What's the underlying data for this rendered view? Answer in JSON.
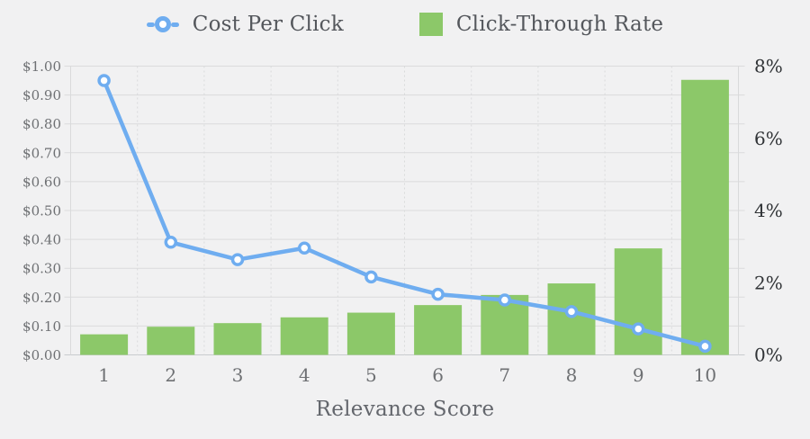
{
  "background_color": "#f1f1f2",
  "legend": {
    "items": [
      {
        "label": "Cost Per Click",
        "marker": "line-circle-marker",
        "color": "#6fadf0"
      },
      {
        "label": "Click-Through Rate",
        "marker": "square-swatch",
        "color": "#8cc869"
      }
    ]
  },
  "chart_data": {
    "type": "combo",
    "categories": [
      "1",
      "2",
      "3",
      "4",
      "5",
      "6",
      "7",
      "8",
      "9",
      "10"
    ],
    "xlabel": "Relevance Score",
    "series": [
      {
        "name": "Cost Per Click",
        "type": "line",
        "axis": "left",
        "color": "#6fadf0",
        "marker": "open-circle",
        "unit": "$",
        "values": [
          0.95,
          0.39,
          0.33,
          0.37,
          0.27,
          0.21,
          0.19,
          0.15,
          0.09,
          0.03
        ]
      },
      {
        "name": "Click-Through Rate",
        "type": "bar",
        "axis": "right",
        "color": "#8cc869",
        "unit": "%",
        "values": [
          0.57,
          0.78,
          0.88,
          1.04,
          1.17,
          1.38,
          1.66,
          1.98,
          2.95,
          7.62
        ]
      }
    ],
    "left_axis": {
      "min": 0,
      "max": 1,
      "ticks": [
        "$1.00",
        "$0.90",
        "$0.80",
        "$0.70",
        "$0.60",
        "$0.50",
        "$0.40",
        "$0.30",
        "$0.20",
        "$0.10",
        "$0.00"
      ]
    },
    "right_axis": {
      "min": 0,
      "max": 8,
      "ticks": [
        "8%",
        "6%",
        "4%",
        "2%",
        "0%"
      ]
    },
    "grid": true,
    "legend_position": "top"
  }
}
